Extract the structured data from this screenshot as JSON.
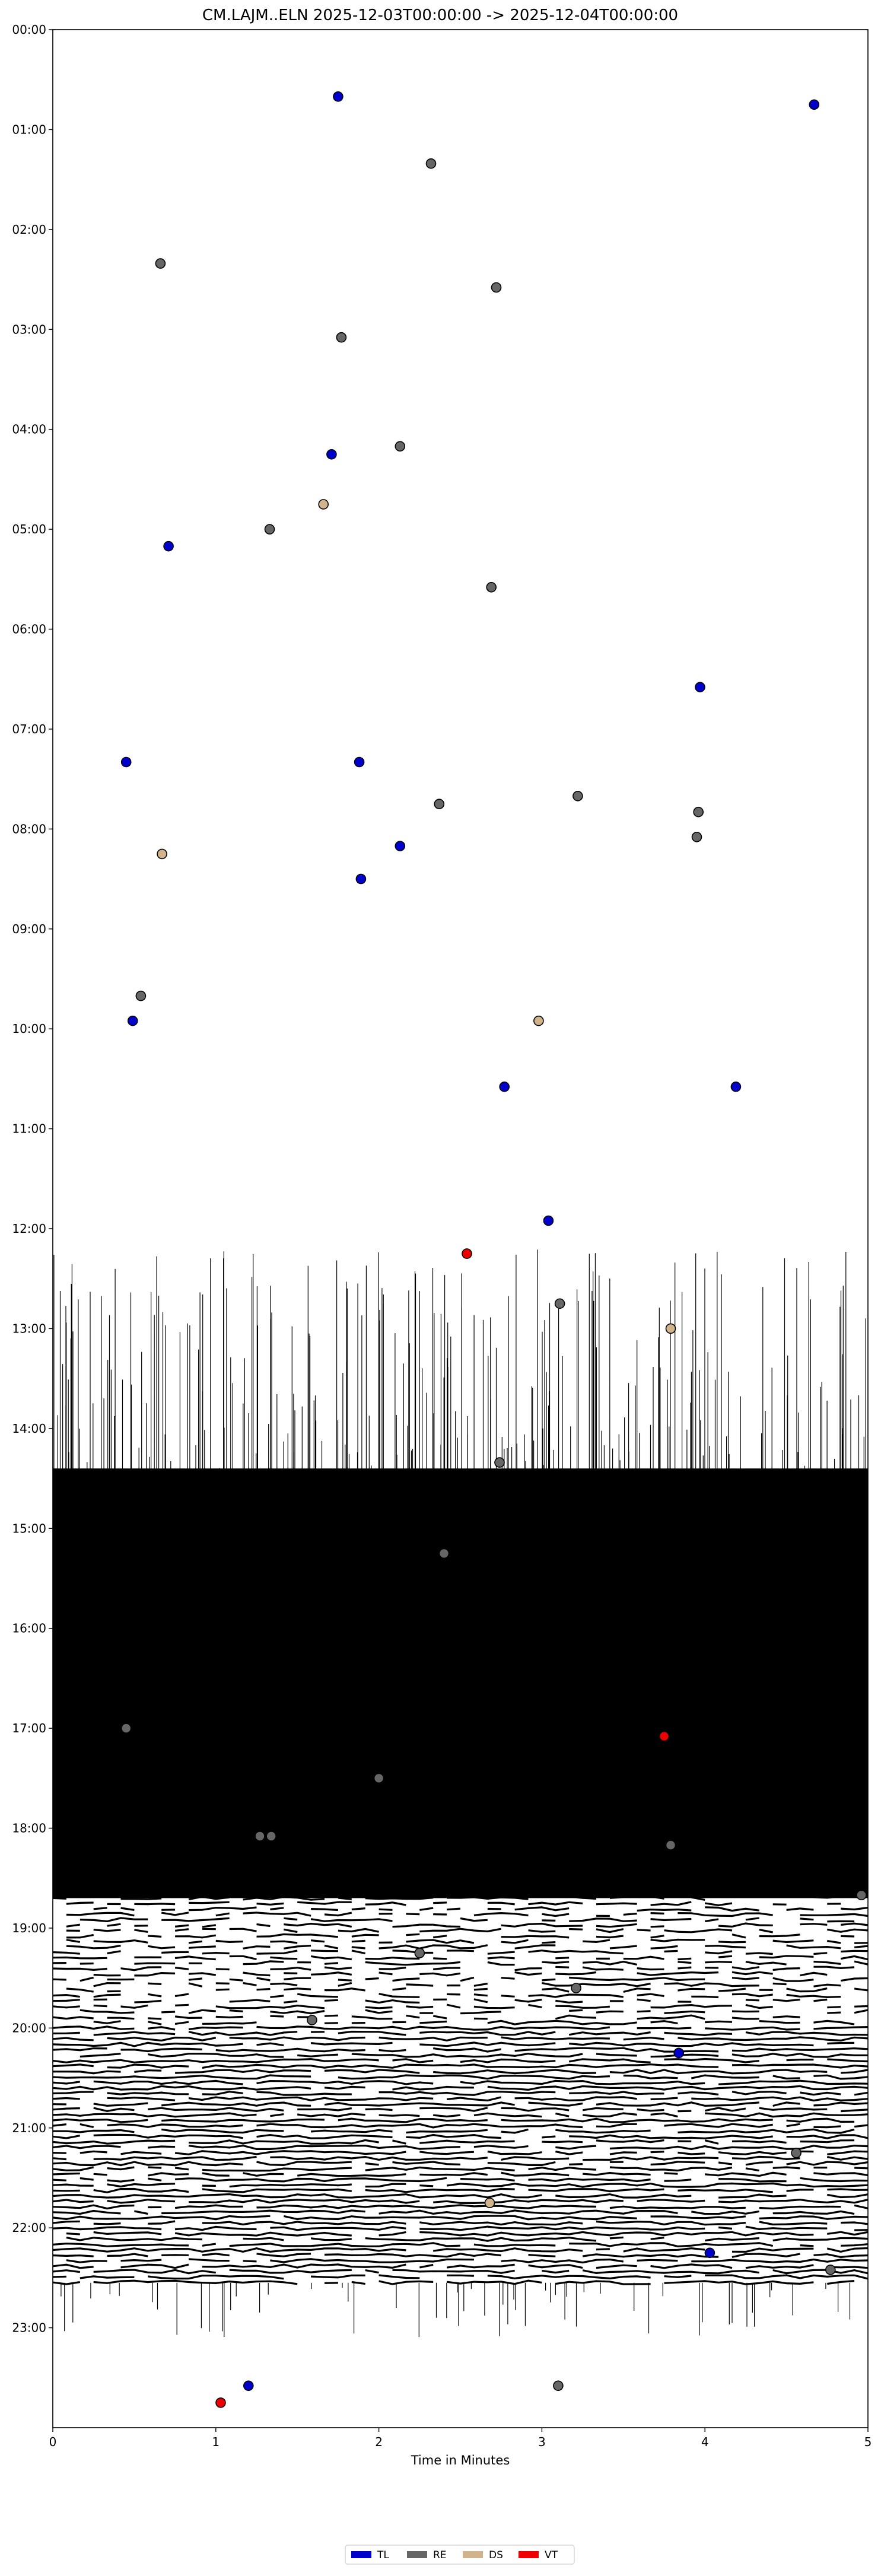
{
  "chart_data": {
    "type": "scatter",
    "title": "CM.LAJM..ELN  2025-12-03T00:00:00 -> 2025-12-04T00:00:00",
    "xlabel": "Time in Minutes",
    "ylabel": "",
    "xlim": [
      0,
      5
    ],
    "ylim_hours": [
      0,
      24
    ],
    "y_inverted": true,
    "grid": false,
    "legend_position": "bottom-center",
    "x_ticks": [
      "0",
      "1",
      "2",
      "3",
      "4",
      "5"
    ],
    "y_ticks": [
      "00:00",
      "01:00",
      "02:00",
      "03:00",
      "04:00",
      "05:00",
      "06:00",
      "07:00",
      "08:00",
      "09:00",
      "10:00",
      "11:00",
      "12:00",
      "13:00",
      "14:00",
      "15:00",
      "16:00",
      "17:00",
      "18:00",
      "19:00",
      "20:00",
      "21:00",
      "22:00",
      "23:00"
    ],
    "colors": {
      "TL": "#0000cc",
      "RE": "#666666",
      "DS": "#d2b48c",
      "VT": "#ee0000"
    },
    "legend": [
      {
        "key": "TL",
        "label": "TL"
      },
      {
        "key": "RE",
        "label": "RE"
      },
      {
        "key": "DS",
        "label": "DS"
      },
      {
        "key": "VT",
        "label": "VT"
      }
    ],
    "waveform_bands": [
      {
        "start": 14.4,
        "end": 18.7,
        "density": 1.0
      },
      {
        "start": 18.7,
        "end": 20.0,
        "density": 0.55
      },
      {
        "start": 20.0,
        "end": 20.6,
        "density": 0.9
      },
      {
        "start": 20.6,
        "end": 22.6,
        "density": 0.85
      }
    ],
    "events": [
      {
        "class": "TL",
        "x": 1.75,
        "y": 0.67
      },
      {
        "class": "TL",
        "x": 4.67,
        "y": 0.75
      },
      {
        "class": "RE",
        "x": 2.32,
        "y": 1.34
      },
      {
        "class": "RE",
        "x": 0.66,
        "y": 2.34
      },
      {
        "class": "RE",
        "x": 2.72,
        "y": 2.58
      },
      {
        "class": "RE",
        "x": 1.77,
        "y": 3.08
      },
      {
        "class": "RE",
        "x": 2.13,
        "y": 4.17
      },
      {
        "class": "TL",
        "x": 1.71,
        "y": 4.25
      },
      {
        "class": "DS",
        "x": 1.66,
        "y": 4.75
      },
      {
        "class": "RE",
        "x": 1.33,
        "y": 5.0
      },
      {
        "class": "TL",
        "x": 0.71,
        "y": 5.17
      },
      {
        "class": "RE",
        "x": 2.69,
        "y": 5.58
      },
      {
        "class": "TL",
        "x": 3.97,
        "y": 6.58
      },
      {
        "class": "TL",
        "x": 0.45,
        "y": 7.33
      },
      {
        "class": "TL",
        "x": 1.88,
        "y": 7.33
      },
      {
        "class": "RE",
        "x": 3.22,
        "y": 7.67
      },
      {
        "class": "RE",
        "x": 2.37,
        "y": 7.75
      },
      {
        "class": "RE",
        "x": 3.96,
        "y": 7.83
      },
      {
        "class": "RE",
        "x": 3.95,
        "y": 8.08
      },
      {
        "class": "TL",
        "x": 2.13,
        "y": 8.17
      },
      {
        "class": "DS",
        "x": 0.67,
        "y": 8.25
      },
      {
        "class": "TL",
        "x": 1.89,
        "y": 8.5
      },
      {
        "class": "RE",
        "x": 0.54,
        "y": 9.67
      },
      {
        "class": "TL",
        "x": 0.49,
        "y": 9.92
      },
      {
        "class": "DS",
        "x": 2.98,
        "y": 9.92
      },
      {
        "class": "TL",
        "x": 2.77,
        "y": 10.58
      },
      {
        "class": "TL",
        "x": 4.19,
        "y": 10.58
      },
      {
        "class": "TL",
        "x": 3.04,
        "y": 11.92
      },
      {
        "class": "VT",
        "x": 2.54,
        "y": 12.25
      },
      {
        "class": "RE",
        "x": 3.11,
        "y": 12.75
      },
      {
        "class": "DS",
        "x": 3.79,
        "y": 13.0
      },
      {
        "class": "RE",
        "x": 2.74,
        "y": 14.34
      },
      {
        "class": "RE",
        "x": 2.4,
        "y": 15.25
      },
      {
        "class": "RE",
        "x": 0.45,
        "y": 17.0
      },
      {
        "class": "VT",
        "x": 3.75,
        "y": 17.08
      },
      {
        "class": "RE",
        "x": 2.0,
        "y": 17.5
      },
      {
        "class": "RE",
        "x": 1.27,
        "y": 18.08
      },
      {
        "class": "RE",
        "x": 1.34,
        "y": 18.08
      },
      {
        "class": "RE",
        "x": 3.79,
        "y": 18.17
      },
      {
        "class": "RE",
        "x": 4.96,
        "y": 18.67
      },
      {
        "class": "RE",
        "x": 2.25,
        "y": 19.25
      },
      {
        "class": "RE",
        "x": 3.21,
        "y": 19.6
      },
      {
        "class": "RE",
        "x": 1.59,
        "y": 19.92
      },
      {
        "class": "TL",
        "x": 3.84,
        "y": 20.25
      },
      {
        "class": "RE",
        "x": 4.56,
        "y": 21.25
      },
      {
        "class": "DS",
        "x": 2.68,
        "y": 21.75
      },
      {
        "class": "TL",
        "x": 4.03,
        "y": 22.25
      },
      {
        "class": "RE",
        "x": 4.77,
        "y": 22.42
      },
      {
        "class": "TL",
        "x": 1.2,
        "y": 23.58
      },
      {
        "class": "RE",
        "x": 3.1,
        "y": 23.58
      },
      {
        "class": "VT",
        "x": 1.03,
        "y": 23.75
      }
    ]
  }
}
